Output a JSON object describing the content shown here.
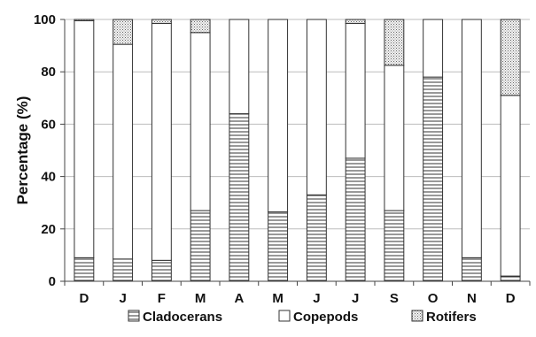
{
  "chart_data": {
    "type": "bar",
    "stacked": true,
    "percent": true,
    "categories": [
      "D",
      "J",
      "F",
      "M",
      "A",
      "M",
      "J",
      "J",
      "S",
      "O",
      "N",
      "D"
    ],
    "series": [
      {
        "name": "Cladocerans",
        "values": [
          9,
          8.5,
          8,
          27,
          64,
          26.5,
          33,
          47,
          27,
          78,
          9,
          2
        ],
        "pattern": "horizontal-lines"
      },
      {
        "name": "Copepods",
        "values": [
          90.5,
          82,
          90.5,
          68,
          36,
          73.5,
          67,
          51.5,
          55.5,
          22,
          91,
          69
        ],
        "pattern": "none"
      },
      {
        "name": "Rotifers",
        "values": [
          0.5,
          9.5,
          1.5,
          5,
          0,
          0,
          0,
          1.5,
          17.5,
          0,
          0,
          29
        ],
        "pattern": "dots"
      }
    ],
    "xlabel": "",
    "ylabel": "Percentage (%)",
    "ylim": [
      0,
      100
    ],
    "yticks": [
      0,
      20,
      40,
      60,
      80,
      100
    ],
    "grid": true,
    "legend_position": "bottom"
  }
}
